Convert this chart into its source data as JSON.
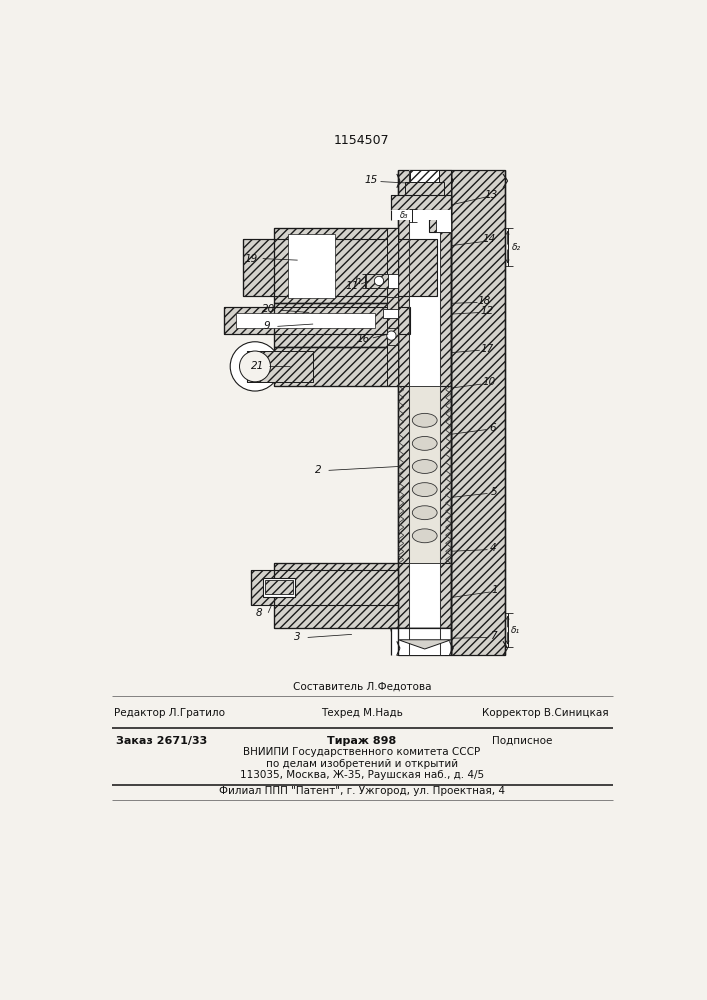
{
  "patent_number": "1154507",
  "bg": "#f4f2ed",
  "lc": "#1a1a1a",
  "hc": "#d4d2cc",
  "footer": {
    "sestavitel": "Составитель Л.Федотова",
    "redaktor": "Редактор Л.Гратило",
    "tehred": "Техред М.Надь",
    "korrektor": "Корректор В.Синицкая",
    "zakaz": "Заказ 2671/33",
    "tirazh": "Тираж 898",
    "podpisnoe": "Подписное",
    "vn1": "ВНИИПИ Государственного комитета СССР",
    "vn2": "по делам изобретений и открытий",
    "vn3": "113035, Москва, Ж-35, Раушская наб., д. 4/5",
    "filial": "Филиал ППП \"Патент\", г. Ужгород, ул. Проектная, 4"
  }
}
